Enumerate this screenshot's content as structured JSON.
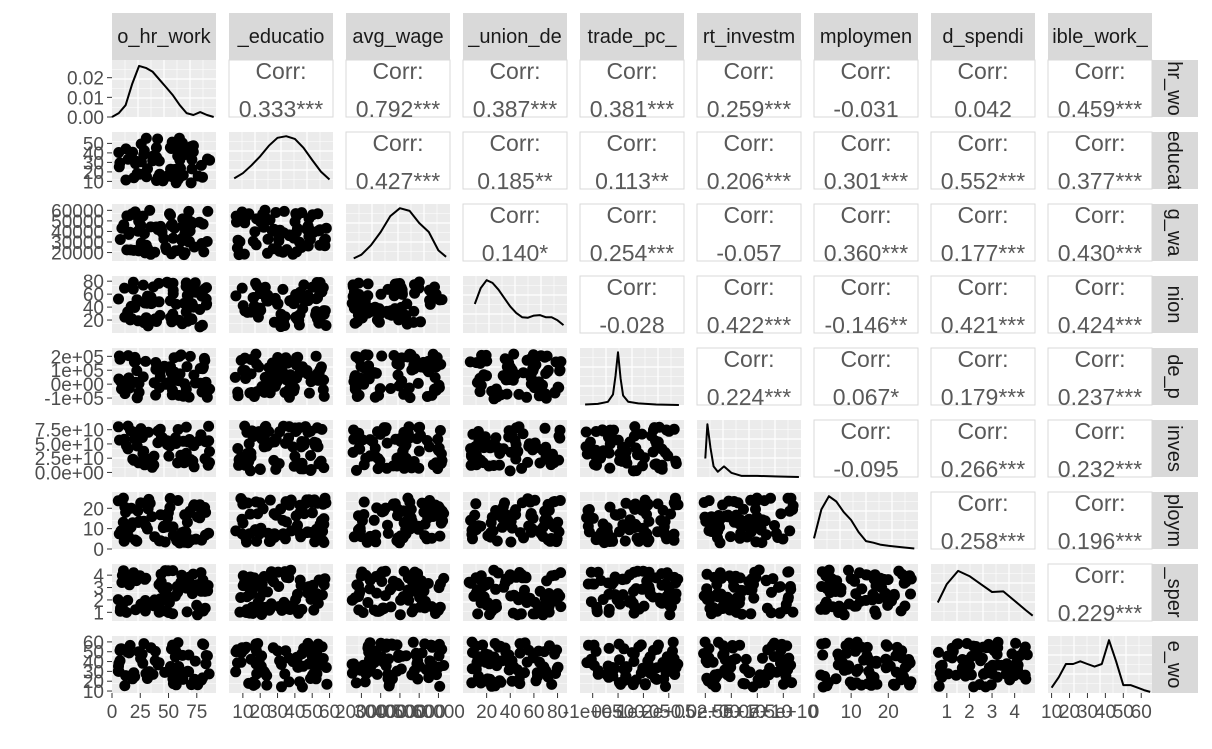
{
  "chart_data": {
    "type": "scatter-matrix",
    "variables": [
      {
        "name": "avg_hr_work",
        "strip_label": "o_hr_work",
        "row_strip_label": "hr_wo",
        "range": [
          0,
          92
        ],
        "ticks": [
          "0",
          "25",
          "50",
          "75"
        ],
        "tick_values": [
          0,
          25,
          50,
          75
        ]
      },
      {
        "name": "avg_education",
        "strip_label": "_educatio",
        "row_strip_label": "educat",
        "range": [
          2,
          62
        ],
        "ticks": [
          "10",
          "20",
          "30",
          "40",
          "50",
          "60"
        ],
        "tick_values": [
          10,
          20,
          30,
          40,
          50,
          60
        ],
        "yticks": [
          "10",
          "20",
          "30",
          "40",
          "50"
        ],
        "ytick_values": [
          10,
          20,
          30,
          40,
          50
        ]
      },
      {
        "name": "avg_wage",
        "strip_label": "avg_wage",
        "row_strip_label": "g_wa",
        "range": [
          12000,
          66000
        ],
        "ticks": [
          "20000",
          "30000",
          "40000",
          "50000",
          "60000"
        ],
        "tick_values": [
          20000,
          30000,
          40000,
          50000,
          60000
        ]
      },
      {
        "name": "avg_union_density",
        "strip_label": "_union_de",
        "row_strip_label": "nion",
        "range": [
          0,
          88
        ],
        "ticks": [
          "20",
          "40",
          "60",
          "80"
        ],
        "tick_values": [
          20,
          40,
          60,
          80
        ]
      },
      {
        "name": "trade_pc",
        "strip_label": "trade_pc_",
        "row_strip_label": "de_p",
        "range": [
          -150000,
          260000
        ],
        "ticks": [
          "-1e+05",
          "0e+00",
          "1e+05",
          "2e+05"
        ],
        "tick_values": [
          -100000,
          0,
          100000,
          200000
        ]
      },
      {
        "name": "foreign_direct_investment",
        "strip_label": "rt_investm",
        "row_strip_label": "inves",
        "range": [
          -8000000000,
          92000000000
        ],
        "ticks": [
          "0.0e+00",
          "2.5e+10",
          "5.0e+10",
          "7.5e+10"
        ],
        "tick_values": [
          0,
          25000000000,
          50000000000,
          75000000000
        ]
      },
      {
        "name": "unemployment",
        "strip_label": "mploymen",
        "row_strip_label": "ploym",
        "range": [
          0,
          28
        ],
        "ticks": [
          "0",
          "10",
          "20"
        ],
        "tick_values": [
          0,
          10,
          20
        ]
      },
      {
        "name": "social_spending",
        "strip_label": "d_spendi",
        "row_strip_label": "_sper",
        "range": [
          0.3,
          4.9
        ],
        "ticks": [
          "1",
          "2",
          "3",
          "4"
        ],
        "tick_values": [
          1,
          2,
          3,
          4
        ]
      },
      {
        "name": "flexible_work",
        "strip_label": "ible_work_",
        "row_strip_label": "e_wo",
        "range": [
          8,
          66
        ],
        "ticks": [
          "10",
          "20",
          "30",
          "40",
          "50",
          "60"
        ],
        "tick_values": [
          10,
          20,
          30,
          40,
          50,
          60
        ]
      }
    ],
    "density_y_ticks": [
      "0.00",
      "0.01",
      "0.02"
    ],
    "density_y_tick_values": [
      0.0,
      0.01,
      0.02
    ],
    "density_y_range": [
      0,
      0.029
    ],
    "correlations": [
      {
        "row": 0,
        "col": 1,
        "label": "Corr:",
        "value": "0.333***"
      },
      {
        "row": 0,
        "col": 2,
        "label": "Corr:",
        "value": "0.792***"
      },
      {
        "row": 0,
        "col": 3,
        "label": "Corr:",
        "value": "0.387***"
      },
      {
        "row": 0,
        "col": 4,
        "label": "Corr:",
        "value": "0.381***"
      },
      {
        "row": 0,
        "col": 5,
        "label": "Corr:",
        "value": "0.259***"
      },
      {
        "row": 0,
        "col": 6,
        "label": "Corr:",
        "value": "-0.031"
      },
      {
        "row": 0,
        "col": 7,
        "label": "Corr:",
        "value": "0.042"
      },
      {
        "row": 0,
        "col": 8,
        "label": "Corr:",
        "value": "0.459***"
      },
      {
        "row": 1,
        "col": 2,
        "label": "Corr:",
        "value": "0.427***"
      },
      {
        "row": 1,
        "col": 3,
        "label": "Corr:",
        "value": "0.185**"
      },
      {
        "row": 1,
        "col": 4,
        "label": "Corr:",
        "value": "0.113**"
      },
      {
        "row": 1,
        "col": 5,
        "label": "Corr:",
        "value": "0.206***"
      },
      {
        "row": 1,
        "col": 6,
        "label": "Corr:",
        "value": "0.301***"
      },
      {
        "row": 1,
        "col": 7,
        "label": "Corr:",
        "value": "0.552***"
      },
      {
        "row": 1,
        "col": 8,
        "label": "Corr:",
        "value": "0.377***"
      },
      {
        "row": 2,
        "col": 3,
        "label": "Corr:",
        "value": "0.140*"
      },
      {
        "row": 2,
        "col": 4,
        "label": "Corr:",
        "value": "0.254***"
      },
      {
        "row": 2,
        "col": 5,
        "label": "Corr:",
        "value": "-0.057"
      },
      {
        "row": 2,
        "col": 6,
        "label": "Corr:",
        "value": "0.360***"
      },
      {
        "row": 2,
        "col": 7,
        "label": "Corr:",
        "value": "0.177***"
      },
      {
        "row": 2,
        "col": 8,
        "label": "Corr:",
        "value": "0.430***"
      },
      {
        "row": 3,
        "col": 4,
        "label": "Corr:",
        "value": "-0.028"
      },
      {
        "row": 3,
        "col": 5,
        "label": "Corr:",
        "value": "0.422***"
      },
      {
        "row": 3,
        "col": 6,
        "label": "Corr:",
        "value": "-0.146**"
      },
      {
        "row": 3,
        "col": 7,
        "label": "Corr:",
        "value": "0.421***"
      },
      {
        "row": 3,
        "col": 8,
        "label": "Corr:",
        "value": "0.424***"
      },
      {
        "row": 4,
        "col": 5,
        "label": "Corr:",
        "value": "0.224***"
      },
      {
        "row": 4,
        "col": 6,
        "label": "Corr:",
        "value": "0.067*"
      },
      {
        "row": 4,
        "col": 7,
        "label": "Corr:",
        "value": "0.179***"
      },
      {
        "row": 4,
        "col": 8,
        "label": "Corr:",
        "value": "0.237***"
      },
      {
        "row": 5,
        "col": 6,
        "label": "Corr:",
        "value": "-0.095"
      },
      {
        "row": 5,
        "col": 7,
        "label": "Corr:",
        "value": "0.266***"
      },
      {
        "row": 5,
        "col": 8,
        "label": "Corr:",
        "value": "0.232***"
      },
      {
        "row": 6,
        "col": 7,
        "label": "Corr:",
        "value": "0.258***"
      },
      {
        "row": 6,
        "col": 8,
        "label": "Corr:",
        "value": "0.196***"
      },
      {
        "row": 7,
        "col": 8,
        "label": "Corr:",
        "value": "0.229***"
      }
    ],
    "densities": [
      {
        "var": 0,
        "x": [
          0,
          6,
          12,
          18,
          24,
          30,
          36,
          42,
          48,
          54,
          60,
          66,
          72,
          78,
          84,
          90
        ],
        "y": [
          0.0,
          0.002,
          0.006,
          0.017,
          0.026,
          0.025,
          0.023,
          0.019,
          0.015,
          0.011,
          0.006,
          0.002,
          0.001,
          0.0025,
          0.001,
          0.0
        ]
      },
      {
        "var": 1,
        "x": [
          5,
          10,
          15,
          20,
          25,
          30,
          35,
          40,
          45,
          50,
          55,
          60
        ],
        "y": [
          0.2,
          0.3,
          0.45,
          0.62,
          0.82,
          0.97,
          1.0,
          0.95,
          0.78,
          0.55,
          0.33,
          0.18
        ]
      },
      {
        "var": 2,
        "x": [
          16000,
          20000,
          25000,
          30000,
          35000,
          40000,
          45000,
          50000,
          55000,
          60000,
          64000
        ],
        "y": [
          0.05,
          0.12,
          0.3,
          0.55,
          0.85,
          1.0,
          0.95,
          0.72,
          0.55,
          0.2,
          0.08
        ]
      },
      {
        "var": 3,
        "x": [
          10,
          15,
          20,
          25,
          30,
          35,
          40,
          45,
          50,
          55,
          60,
          65,
          70,
          75,
          80,
          85
        ],
        "y": [
          0.55,
          0.85,
          1.0,
          0.95,
          0.82,
          0.66,
          0.5,
          0.38,
          0.3,
          0.29,
          0.33,
          0.34,
          0.3,
          0.3,
          0.24,
          0.15
        ]
      },
      {
        "var": 4,
        "x": [
          -130000,
          -80000,
          -40000,
          -20000,
          -10000,
          0,
          10000,
          20000,
          40000,
          80000,
          150000,
          240000
        ],
        "y": [
          0.01,
          0.02,
          0.06,
          0.2,
          0.55,
          1.0,
          0.5,
          0.18,
          0.06,
          0.03,
          0.01,
          0.0
        ]
      },
      {
        "var": 5,
        "x": [
          0,
          2000000000,
          5000000000,
          8000000000,
          12000000000,
          18000000000,
          25000000000,
          35000000000,
          50000000000,
          70000000000,
          90000000000
        ],
        "y": [
          0.35,
          1.0,
          0.55,
          0.2,
          0.1,
          0.2,
          0.08,
          0.02,
          0.02,
          0.01,
          0.0
        ]
      },
      {
        "var": 6,
        "x": [
          0,
          2,
          4,
          6,
          8,
          10,
          12,
          14,
          16,
          18,
          20,
          24,
          27
        ],
        "y": [
          0.2,
          0.75,
          1.0,
          0.9,
          0.7,
          0.55,
          0.32,
          0.15,
          0.12,
          0.08,
          0.06,
          0.03,
          0.01
        ]
      },
      {
        "var": 7,
        "x": [
          0.6,
          1.0,
          1.5,
          2.0,
          2.5,
          3.0,
          3.5,
          4.0,
          4.5,
          4.8
        ],
        "y": [
          0.35,
          0.7,
          0.95,
          0.85,
          0.7,
          0.55,
          0.56,
          0.38,
          0.2,
          0.1
        ]
      },
      {
        "var": 8,
        "x": [
          10,
          14,
          18,
          22,
          26,
          30,
          34,
          38,
          42,
          46,
          50,
          54,
          58,
          62,
          65
        ],
        "y": [
          0.1,
          0.3,
          0.55,
          0.55,
          0.6,
          0.55,
          0.5,
          0.55,
          1.0,
          0.6,
          0.15,
          0.15,
          0.1,
          0.05,
          0.02
        ]
      }
    ]
  }
}
